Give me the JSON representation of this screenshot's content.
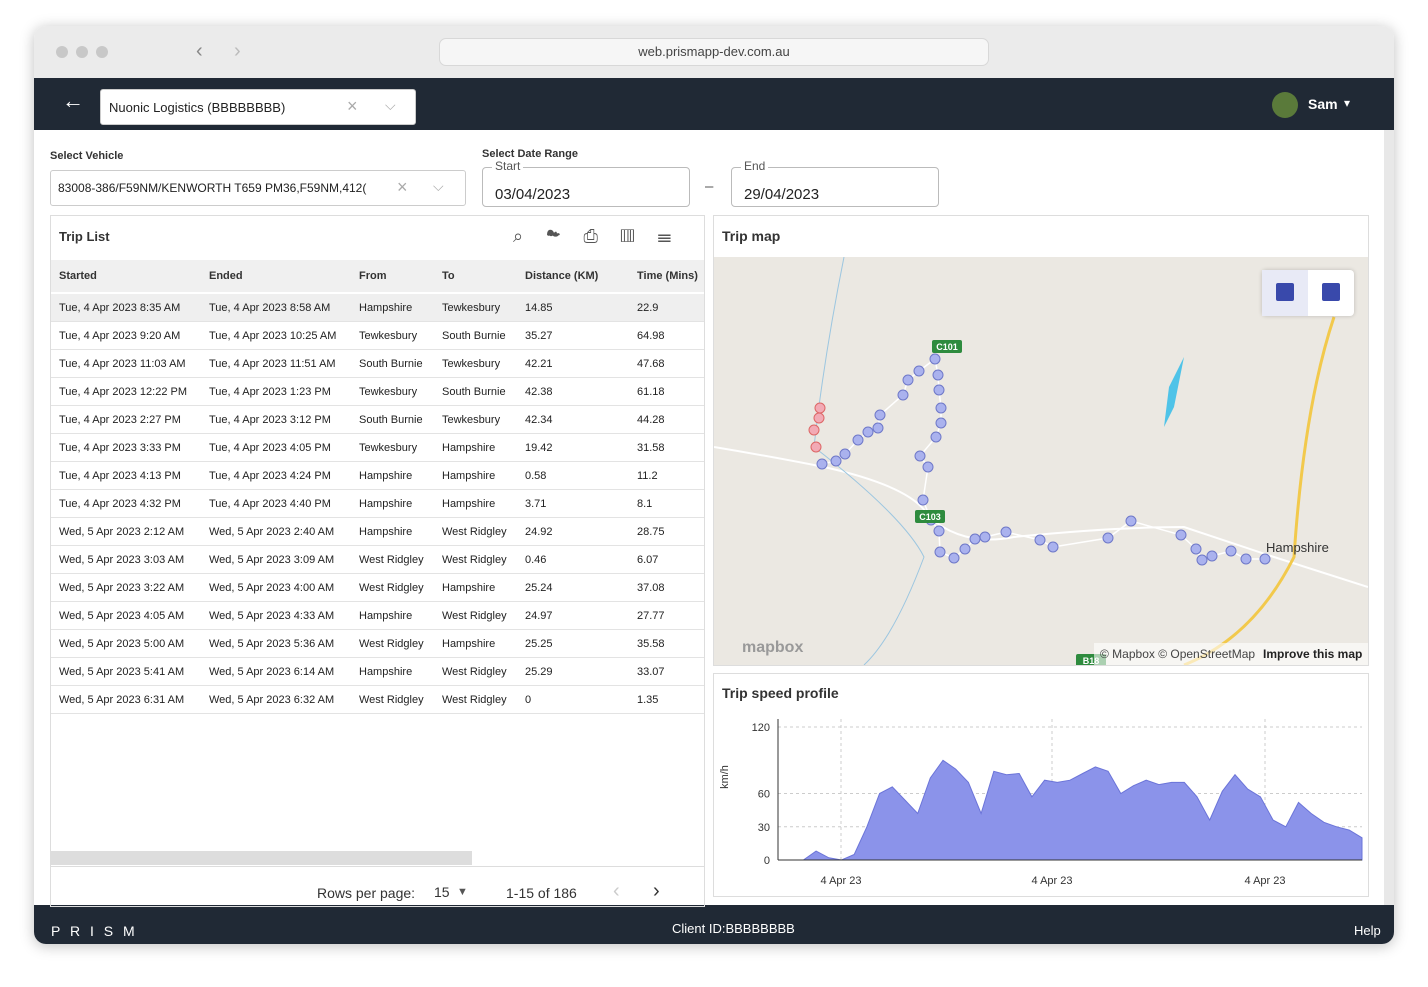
{
  "browser": {
    "url": "web.prismapp-dev.com.au"
  },
  "header": {
    "org": "Nuonic Logistics (BBBBBBBB)",
    "user": "Sam"
  },
  "filters": {
    "vehicle_label": "Select Vehicle",
    "vehicle": "83008-386/F59NM/KENWORTH T659 PM36,F59NM,412(",
    "date_label": "Select Date Range",
    "start_label": "Start",
    "start": "03/04/2023",
    "end_label": "End",
    "end": "29/04/2023",
    "dash": "–"
  },
  "trip_list": {
    "title": "Trip List",
    "columns": [
      "Started",
      "Ended",
      "From",
      "To",
      "Distance (KM)",
      "Time (Mins)"
    ],
    "rows": [
      [
        "Tue, 4 Apr 2023 8:35 AM",
        "Tue, 4 Apr 2023 8:58 AM",
        "Hampshire",
        "Tewkesbury",
        "14.85",
        "22.9"
      ],
      [
        "Tue, 4 Apr 2023 9:20 AM",
        "Tue, 4 Apr 2023 10:25 AM",
        "Tewkesbury",
        "South Burnie",
        "35.27",
        "64.98"
      ],
      [
        "Tue, 4 Apr 2023 11:03 AM",
        "Tue, 4 Apr 2023 11:51 AM",
        "South Burnie",
        "Tewkesbury",
        "42.21",
        "47.68"
      ],
      [
        "Tue, 4 Apr 2023 12:22 PM",
        "Tue, 4 Apr 2023 1:23 PM",
        "Tewkesbury",
        "South Burnie",
        "42.38",
        "61.18"
      ],
      [
        "Tue, 4 Apr 2023 2:27 PM",
        "Tue, 4 Apr 2023 3:12 PM",
        "South Burnie",
        "Tewkesbury",
        "42.34",
        "44.28"
      ],
      [
        "Tue, 4 Apr 2023 3:33 PM",
        "Tue, 4 Apr 2023 4:05 PM",
        "Tewkesbury",
        "Hampshire",
        "19.42",
        "31.58"
      ],
      [
        "Tue, 4 Apr 2023 4:13 PM",
        "Tue, 4 Apr 2023 4:24 PM",
        "Hampshire",
        "Hampshire",
        "0.58",
        "11.2"
      ],
      [
        "Tue, 4 Apr 2023 4:32 PM",
        "Tue, 4 Apr 2023 4:40 PM",
        "Hampshire",
        "Hampshire",
        "3.71",
        "8.1"
      ],
      [
        "Wed, 5 Apr 2023 2:12 AM",
        "Wed, 5 Apr 2023 2:40 AM",
        "Hampshire",
        "West Ridgley",
        "24.92",
        "28.75"
      ],
      [
        "Wed, 5 Apr 2023 3:03 AM",
        "Wed, 5 Apr 2023 3:09 AM",
        "West Ridgley",
        "West Ridgley",
        "0.46",
        "6.07"
      ],
      [
        "Wed, 5 Apr 2023 3:22 AM",
        "Wed, 5 Apr 2023 4:00 AM",
        "West Ridgley",
        "Hampshire",
        "25.24",
        "37.08"
      ],
      [
        "Wed, 5 Apr 2023 4:05 AM",
        "Wed, 5 Apr 2023 4:33 AM",
        "Hampshire",
        "West Ridgley",
        "24.97",
        "27.77"
      ],
      [
        "Wed, 5 Apr 2023 5:00 AM",
        "Wed, 5 Apr 2023 5:36 AM",
        "West Ridgley",
        "Hampshire",
        "25.25",
        "35.58"
      ],
      [
        "Wed, 5 Apr 2023 5:41 AM",
        "Wed, 5 Apr 2023 6:14 AM",
        "Hampshire",
        "West Ridgley",
        "25.29",
        "33.07"
      ],
      [
        "Wed, 5 Apr 2023 6:31 AM",
        "Wed, 5 Apr 2023 6:32 AM",
        "West Ridgley",
        "West Ridgley",
        "0",
        "1.35"
      ]
    ],
    "rows_per_page_label": "Rows per page:",
    "rows_per_page": "15",
    "range": "1-15 of 186"
  },
  "map": {
    "title": "Trip map",
    "road_1": "C101",
    "road_2": "C103",
    "road_3": "B18",
    "place": "Hampshire",
    "logo": "mapbox",
    "attribution": "© Mapbox © OpenStreetMap",
    "improve": "Improve this map"
  },
  "speed_profile": {
    "title": "Trip speed profile",
    "type": "area",
    "y_label": "km/h",
    "ylim": [
      0,
      120
    ],
    "yticks": [
      0,
      30,
      60,
      120
    ],
    "x_labels": [
      "4 Apr 23",
      "4 Apr 23",
      "4 Apr 23"
    ],
    "color": "#8b93ea",
    "values": [
      0,
      0,
      0,
      8,
      2,
      0,
      5,
      30,
      60,
      66,
      54,
      42,
      74,
      90,
      82,
      70,
      42,
      80,
      77,
      78,
      57,
      72,
      70,
      72,
      78,
      84,
      80,
      60,
      67,
      72,
      68,
      70,
      70,
      57,
      36,
      62,
      77,
      64,
      57,
      36,
      30,
      52,
      42,
      34,
      30,
      27,
      20
    ]
  },
  "footer": {
    "brand": "P R I S M",
    "client": "Client ID:BBBBBBBB",
    "help": "Help"
  }
}
